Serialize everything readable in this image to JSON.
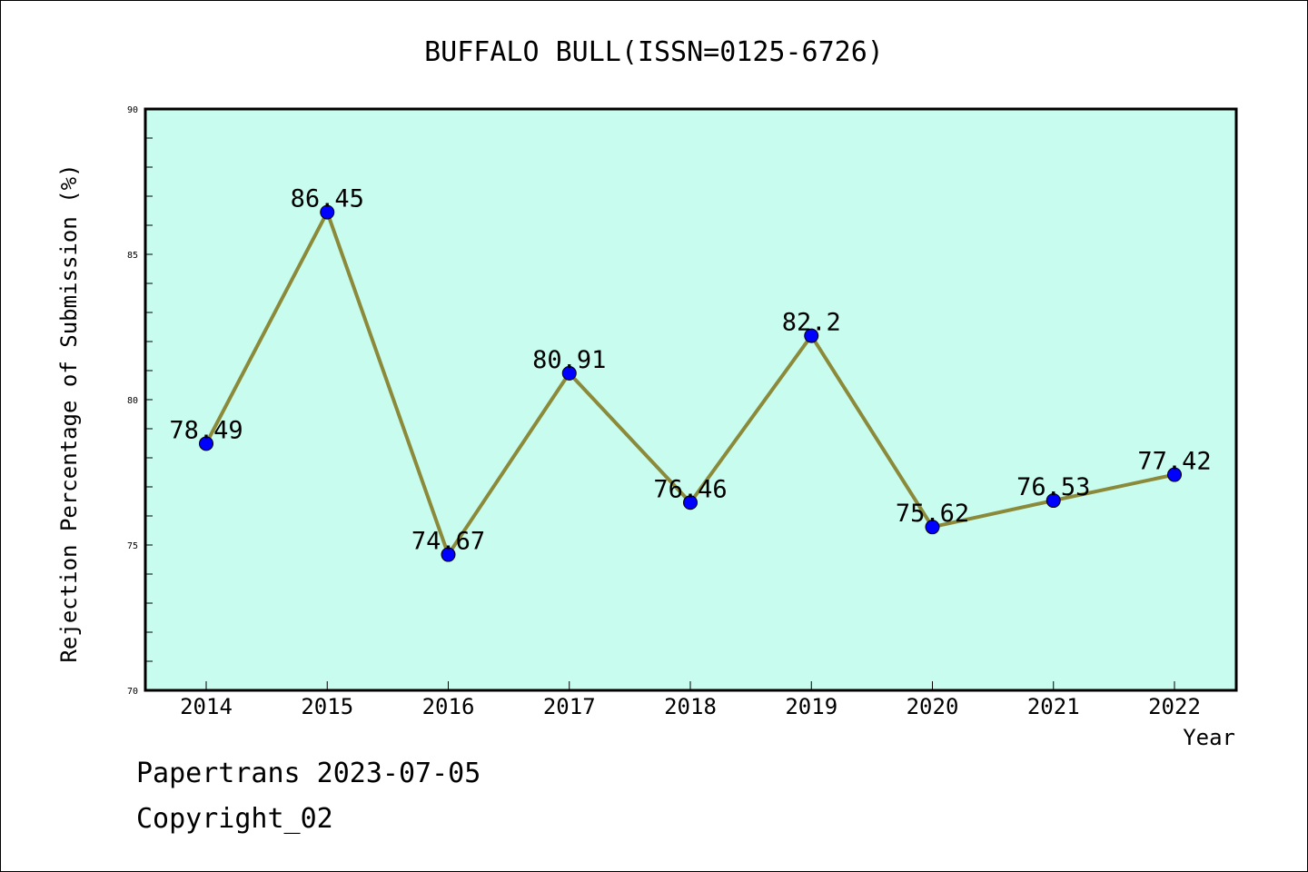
{
  "chart_data": {
    "type": "line",
    "title": "BUFFALO BULL(ISSN=0125-6726)",
    "xlabel": "Year",
    "ylabel": "Rejection Percentage of Submission (%)",
    "categories": [
      "2014",
      "2015",
      "2016",
      "2017",
      "2018",
      "2019",
      "2020",
      "2021",
      "2022"
    ],
    "values": [
      78.49,
      86.45,
      74.67,
      80.91,
      76.46,
      82.2,
      75.62,
      76.53,
      77.42
    ],
    "data_labels": [
      "78.49",
      "86.45",
      "74.67",
      "80.91",
      "76.46",
      "82.2",
      "75.62",
      "76.53",
      "77.42"
    ],
    "ylim": [
      70,
      90
    ],
    "yticks": [
      "70",
      "75",
      "80",
      "85",
      "90"
    ],
    "grid": false,
    "colors": {
      "plot_background": "#c8fcee",
      "line": "#8b8a3a",
      "marker": "#0000ff"
    }
  },
  "footer": {
    "line1": "Papertrans 2023-07-05",
    "line2": "Copyright_02"
  }
}
